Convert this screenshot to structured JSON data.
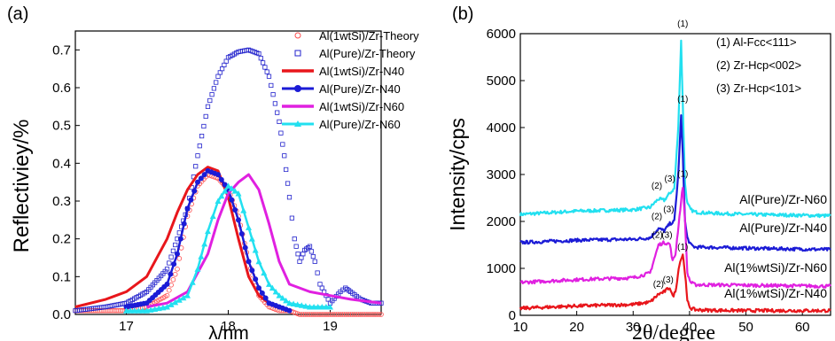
{
  "chart_data": [
    {
      "type": "line",
      "panel_label": "(a)",
      "xlabel": "λ/nm",
      "ylabel": "Reflectiviey/%",
      "xlim": [
        16.5,
        19.5
      ],
      "ylim": [
        0.0,
        0.75
      ],
      "xticks": [
        {
          "value": 17,
          "label": "17"
        },
        {
          "value": 18,
          "label": "18"
        },
        {
          "value": 19,
          "label": "19"
        }
      ],
      "yticks": [
        {
          "value": 0.0,
          "label": "0.0"
        },
        {
          "value": 0.1,
          "label": "0.1"
        },
        {
          "value": 0.2,
          "label": "0.2"
        },
        {
          "value": 0.3,
          "label": "0.3"
        },
        {
          "value": 0.4,
          "label": "0.4"
        },
        {
          "value": 0.5,
          "label": "0.5"
        },
        {
          "value": 0.6,
          "label": "0.6"
        },
        {
          "value": 0.7,
          "label": "0.7"
        }
      ],
      "legend_position": "top-right",
      "series": [
        {
          "name": "Al(1wtSi)/Zr-Theory",
          "color": "#ff4d4d",
          "style": "circle-markers",
          "x": [
            16.5,
            16.8,
            17.0,
            17.2,
            17.4,
            17.5,
            17.6,
            17.7,
            17.8,
            17.9,
            18.0,
            18.1,
            18.2,
            18.3,
            18.4,
            18.5,
            18.6,
            18.7,
            18.8,
            19.0,
            19.2,
            19.5
          ],
          "y": [
            0.01,
            0.01,
            0.01,
            0.02,
            0.05,
            0.12,
            0.26,
            0.34,
            0.37,
            0.36,
            0.33,
            0.26,
            0.14,
            0.05,
            0.02,
            0.01,
            0.01,
            0.0,
            0.0,
            0.0,
            0.0,
            0.0
          ]
        },
        {
          "name": "Al(Pure)/Zr-Theory",
          "color": "#2222cc",
          "style": "square-markers",
          "x": [
            16.5,
            16.8,
            17.0,
            17.2,
            17.4,
            17.6,
            17.7,
            17.8,
            17.9,
            18.0,
            18.1,
            18.2,
            18.3,
            18.4,
            18.5,
            18.55,
            18.6,
            18.65,
            18.7,
            18.75,
            18.8,
            18.85,
            18.9,
            19.0,
            19.1,
            19.15,
            19.2,
            19.3,
            19.4,
            19.5
          ],
          "y": [
            0.01,
            0.02,
            0.03,
            0.06,
            0.12,
            0.28,
            0.42,
            0.55,
            0.63,
            0.68,
            0.695,
            0.7,
            0.69,
            0.63,
            0.51,
            0.42,
            0.31,
            0.2,
            0.14,
            0.17,
            0.18,
            0.14,
            0.08,
            0.03,
            0.06,
            0.07,
            0.06,
            0.04,
            0.03,
            0.03
          ]
        },
        {
          "name": "Al(1wtSi)/Zr-N40",
          "color": "#e8161b",
          "style": "thick-line",
          "x": [
            16.5,
            16.8,
            17.0,
            17.2,
            17.4,
            17.5,
            17.6,
            17.7,
            17.8,
            17.9,
            18.0,
            18.1,
            18.2,
            18.3,
            18.4,
            18.5,
            18.6
          ],
          "y": [
            0.02,
            0.04,
            0.06,
            0.1,
            0.2,
            0.27,
            0.33,
            0.37,
            0.39,
            0.38,
            0.31,
            0.2,
            0.1,
            0.05,
            0.03,
            0.02,
            0.01
          ]
        },
        {
          "name": "Al(Pure)/Zr-N40",
          "color": "#1b1bd6",
          "style": "line-dot",
          "x": [
            17.0,
            17.2,
            17.4,
            17.5,
            17.6,
            17.7,
            17.8,
            17.9,
            18.0,
            18.1,
            18.2,
            18.3,
            18.4,
            18.5,
            18.6
          ],
          "y": [
            0.02,
            0.03,
            0.08,
            0.16,
            0.28,
            0.35,
            0.38,
            0.37,
            0.33,
            0.25,
            0.14,
            0.07,
            0.03,
            0.02,
            0.01
          ]
        },
        {
          "name": "Al(1wtSi)/Zr-N60",
          "color": "#e020e0",
          "style": "thick-line",
          "x": [
            17.2,
            17.4,
            17.6,
            17.8,
            17.9,
            18.0,
            18.1,
            18.2,
            18.3,
            18.4,
            18.5,
            18.6,
            18.8,
            19.0,
            19.2,
            19.5
          ],
          "y": [
            0.02,
            0.03,
            0.06,
            0.16,
            0.25,
            0.32,
            0.35,
            0.37,
            0.33,
            0.24,
            0.14,
            0.08,
            0.06,
            0.05,
            0.04,
            0.03
          ]
        },
        {
          "name": "Al(Pure)/Zr-N60",
          "color": "#22e0f0",
          "style": "line-triangle",
          "x": [
            17.0,
            17.2,
            17.4,
            17.6,
            17.7,
            17.8,
            17.9,
            18.0,
            18.1,
            18.2,
            18.3,
            18.4,
            18.5,
            18.6,
            18.8,
            19.0
          ],
          "y": [
            0.01,
            0.01,
            0.02,
            0.05,
            0.12,
            0.22,
            0.3,
            0.34,
            0.32,
            0.23,
            0.14,
            0.08,
            0.05,
            0.03,
            0.02,
            0.02
          ]
        }
      ]
    },
    {
      "type": "line",
      "panel_label": "(b)",
      "xlabel": "2θ/degree",
      "ylabel": "Intensity/cps",
      "xlim": [
        10,
        65
      ],
      "ylim": [
        0,
        6000
      ],
      "xticks": [
        {
          "value": 10,
          "label": "10"
        },
        {
          "value": 20,
          "label": "20"
        },
        {
          "value": 30,
          "label": "30"
        },
        {
          "value": 40,
          "label": "40"
        },
        {
          "value": 50,
          "label": "50"
        },
        {
          "value": 60,
          "label": "60"
        }
      ],
      "yticks": [
        {
          "value": 0,
          "label": "0"
        },
        {
          "value": 1000,
          "label": "1000"
        },
        {
          "value": 2000,
          "label": "2000"
        },
        {
          "value": 3000,
          "label": "3000"
        },
        {
          "value": 4000,
          "label": "4000"
        },
        {
          "value": 5000,
          "label": "5000"
        },
        {
          "value": 6000,
          "label": "6000"
        }
      ],
      "annotations": [
        {
          "text": "(1) Al-Fcc<111>"
        },
        {
          "text": "(2) Zr-Hcp<002>"
        },
        {
          "text": "(3) Zr-Hcp<101>"
        }
      ],
      "series": [
        {
          "name": "Al(Pure)/Zr-N60",
          "color": "#22e0f0",
          "baseline": 2150,
          "x": [
            10,
            20,
            30,
            33,
            34.5,
            35.5,
            36.5,
            37.3,
            38.0,
            38.5,
            38.8,
            39.2,
            39.6,
            40.2,
            41,
            43,
            50,
            65
          ],
          "y": [
            2150,
            2220,
            2250,
            2300,
            2480,
            2450,
            2600,
            2700,
            4000,
            5850,
            4500,
            2800,
            2380,
            2250,
            2200,
            2180,
            2150,
            2120
          ],
          "peak_labels": [
            {
              "text": "(2)",
              "x": 34.2,
              "y": 2700
            },
            {
              "text": "(3)",
              "x": 36.5,
              "y": 2850
            },
            {
              "text": "(1)",
              "x": 38.8,
              "y": 6150
            }
          ]
        },
        {
          "name": "Al(Pure)/Zr-N40",
          "color": "#1b1bd6",
          "baseline": 1550,
          "x": [
            10,
            20,
            30,
            33,
            34.5,
            35.5,
            36.5,
            37.3,
            38.0,
            38.5,
            38.8,
            39.2,
            39.6,
            40.2,
            41,
            43,
            50,
            65
          ],
          "y": [
            1550,
            1600,
            1620,
            1650,
            1850,
            1800,
            1950,
            2000,
            3000,
            4250,
            3400,
            2000,
            1650,
            1500,
            1450,
            1450,
            1430,
            1400
          ],
          "peak_labels": [
            {
              "text": "(2)",
              "x": 34.2,
              "y": 2050
            },
            {
              "text": "(3)",
              "x": 36.3,
              "y": 2200
            },
            {
              "text": "(1)",
              "x": 38.8,
              "y": 4550
            }
          ]
        },
        {
          "name": "Al(1%wtSi)/Zr-N60",
          "color": "#e020e0",
          "baseline": 700,
          "x": [
            10,
            20,
            30,
            33,
            34.5,
            35.5,
            36.5,
            37.0,
            37.5,
            38.2,
            38.8,
            39.2,
            39.6,
            40.2,
            41,
            43,
            50,
            65
          ],
          "y": [
            700,
            760,
            800,
            900,
            1500,
            1550,
            1520,
            1150,
            1300,
            2100,
            2750,
            2000,
            900,
            700,
            650,
            650,
            640,
            620
          ],
          "peak_labels": [
            {
              "text": "(2)",
              "x": 34.3,
              "y": 1650
            },
            {
              "text": "(3)",
              "x": 36.0,
              "y": 1650
            },
            {
              "text": "(1)",
              "x": 38.8,
              "y": 2950
            }
          ]
        },
        {
          "name": "Al(1%wtSi)/Zr-N40",
          "color": "#e8161b",
          "baseline": 150,
          "x": [
            10,
            20,
            30,
            33,
            34.5,
            35.5,
            36.5,
            37.0,
            37.5,
            38.2,
            38.8,
            39.2,
            39.6,
            40.2,
            41,
            43,
            50,
            65
          ],
          "y": [
            150,
            200,
            230,
            280,
            450,
            500,
            600,
            400,
            500,
            1100,
            1300,
            900,
            300,
            150,
            120,
            110,
            100,
            100
          ],
          "peak_labels": [
            {
              "text": "(2)",
              "x": 34.5,
              "y": 600
            },
            {
              "text": "(3)",
              "x": 36.2,
              "y": 700
            },
            {
              "text": "(1)",
              "x": 38.8,
              "y": 1400
            }
          ]
        }
      ]
    }
  ]
}
